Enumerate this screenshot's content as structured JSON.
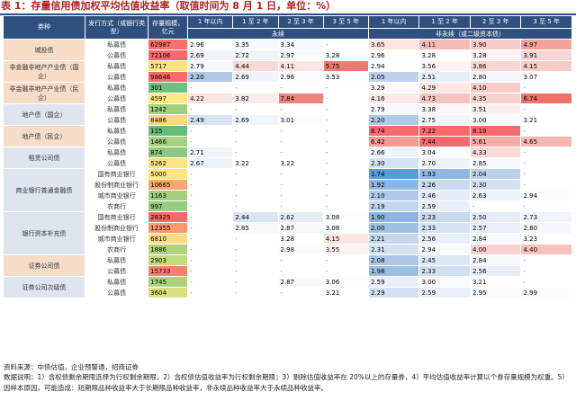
{
  "title": "表 1：存量信用债加权平均估值收益率（取值时间为 8 月 1 日，单位：%）",
  "header": {
    "bond_type": "券种",
    "issue_method": "发行方式（或银行类型）",
    "outstanding": "存量规模，亿元",
    "perpetual_group": "永续",
    "non_perpetual_group": "非永续（或二级资本债）",
    "terms": [
      "1 年以内",
      "1 至 2 年",
      "2 至 3 年",
      "3 至 5 年"
    ]
  },
  "colors": {
    "header_bg": "#2f4f7f",
    "title_red": "#b22222",
    "bond_type_bg": "#f7dcc8",
    "bond_type_alt_bg": "#dfe5ef"
  },
  "groups": [
    {
      "name": "城投债",
      "rows": [
        {
          "method": "私募债",
          "size": "62987",
          "size_color": "#f8716b",
          "values": [
            "2.96",
            "3.35",
            "3.34",
            "-",
            "3.65",
            "4.11",
            "3.90",
            "4.97"
          ],
          "colors": [
            "#ffffff",
            "#f5f8fc",
            "#f5f8fc",
            "#ffffff",
            "#fbe4e2",
            "#f5bcb7",
            "#f8ccc8",
            "#f2a39c"
          ]
        },
        {
          "method": "公募债",
          "size": "72106",
          "size_color": "#f8696b",
          "values": [
            "2.69",
            "2.72",
            "2.97",
            "3.28",
            "2.96",
            "3.28",
            "3.28",
            "3.91"
          ],
          "colors": [
            "#f0f4fa",
            "#f0f4fa",
            "#fafbfd",
            "#fdfeff",
            "#ffffff",
            "#ffffff",
            "#fdf5f4",
            "#f9d6d3"
          ]
        }
      ]
    },
    {
      "name": "非金融非地产产业债（国企）",
      "rows": [
        {
          "method": "私募债",
          "size": "5717",
          "size_color": "#fde282",
          "values": [
            "2.79",
            "4.44",
            "4.11",
            "5.75",
            "2.94",
            "3.56",
            "3.86",
            "4.15"
          ],
          "colors": [
            "#f5f8fc",
            "#f9d9d6",
            "#fbe4e2",
            "#f07a72",
            "#ffffff",
            "#fdf3f2",
            "#f9d6d3",
            "#f8cbc7"
          ]
        },
        {
          "method": "公募债",
          "size": "98646",
          "size_color": "#f8696b",
          "values": [
            "2.20",
            "2.69",
            "2.96",
            "3.53",
            "2.05",
            "2.51",
            "2.80",
            "3.07"
          ],
          "colors": [
            "#aec8e6",
            "#f0f4fa",
            "#fafbfd",
            "#fdfeff",
            "#bcd2ec",
            "#e6eef8",
            "#f4f7fc",
            "#ffffff"
          ]
        }
      ]
    },
    {
      "name": "非金融非地产产业债（民企）",
      "rows": [
        {
          "method": "私募债",
          "size": "301",
          "size_color": "#6cc080",
          "values": [
            "-",
            "-",
            "-",
            "-",
            "3.29",
            "4.29",
            "4.10",
            "-"
          ],
          "colors": [
            "#ffffff",
            "#ffffff",
            "#ffffff",
            "#ffffff",
            "#fefafa",
            "#fce7e5",
            "#f8cdc9",
            "#ffffff"
          ]
        },
        {
          "method": "公募债",
          "size": "4597",
          "size_color": "#ffeb84",
          "values": [
            "4.22",
            "3.82",
            "7.84",
            "-",
            "4.16",
            "4.73",
            "4.35",
            "6.74"
          ],
          "colors": [
            "#fbe4e2",
            "#fcebea",
            "#f2837c",
            "#ffffff",
            "#fce8e6",
            "#f6c4bf",
            "#f9d3cf",
            "#ef726a"
          ]
        }
      ]
    },
    {
      "name": "地产债（国企）",
      "rows": [
        {
          "method": "私募债",
          "size": "1242",
          "size_color": "#a2cf7e",
          "values": [
            "-",
            "-",
            "-",
            "-",
            "2.79",
            "3.38",
            "3.51",
            "-"
          ],
          "colors": [
            "#ffffff",
            "#ffffff",
            "#ffffff",
            "#ffffff",
            "#f5f8fc",
            "#fdf6f5",
            "#fcf0ef",
            "#ffffff"
          ]
        },
        {
          "method": "公募债",
          "size": "8486",
          "size_color": "#fcd87f",
          "values": [
            "2.49",
            "2.69",
            "3.01",
            "-",
            "2.20",
            "2.75",
            "3.00",
            "3.21"
          ],
          "colors": [
            "#d7e3f2",
            "#f0f4fa",
            "#fafbfd",
            "#ffffff",
            "#aec8e6",
            "#f2f6fb",
            "#fafbfd",
            "#ffffff"
          ]
        }
      ]
    },
    {
      "name": "地产债（民企）",
      "rows": [
        {
          "method": "私募债",
          "size": "115",
          "size_color": "#63be7b",
          "values": [
            "-",
            "-",
            "-",
            "-",
            "8.74",
            "7.22",
            "8.19",
            "-"
          ],
          "colors": [
            "#ffffff",
            "#ffffff",
            "#ffffff",
            "#ffffff",
            "#f8696b",
            "#f8696b",
            "#f8696b",
            "#ffffff"
          ]
        },
        {
          "method": "公募债",
          "size": "1466",
          "size_color": "#a8d17f",
          "values": [
            "-",
            "-",
            "-",
            "-",
            "6.42",
            "7.44",
            "5.61",
            "4.65"
          ],
          "colors": [
            "#ffffff",
            "#ffffff",
            "#ffffff",
            "#ffffff",
            "#f29a93",
            "#f8696b",
            "#f5aca6",
            "#f6b7b2"
          ]
        }
      ]
    },
    {
      "name": "租赁公司债",
      "rows": [
        {
          "method": "私募债",
          "size": "874",
          "size_color": "#8ec97f",
          "values": [
            "2.71",
            "-",
            "-",
            "-",
            "2.66",
            "3.04",
            "4.33",
            "-"
          ],
          "colors": [
            "#f1f5fa",
            "#ffffff",
            "#ffffff",
            "#ffffff",
            "#eff4fa",
            "#fcfdfe",
            "#fad9d6",
            "#ffffff"
          ]
        },
        {
          "method": "公募债",
          "size": "5262",
          "size_color": "#fee182",
          "values": [
            "2.67",
            "3.22",
            "3.22",
            "-",
            "2.30",
            "2.70",
            "2.85",
            "-"
          ],
          "colors": [
            "#eef3f9",
            "#ffffff",
            "#ffffff",
            "#ffffff",
            "#d3e1f1",
            "#f0f4fa",
            "#f7f9fc",
            "#ffffff"
          ]
        }
      ]
    },
    {
      "name": "商业银行普通金融债",
      "rows": [
        {
          "method": "国有商业银行",
          "size": "5000",
          "size_color": "#fee482",
          "values": [
            "-",
            "-",
            "-",
            "-",
            "1.74",
            "1.93",
            "2.04",
            "-"
          ],
          "colors": [
            "#ffffff",
            "#ffffff",
            "#ffffff",
            "#ffffff",
            "#5b9bd5",
            "#8fb7e1",
            "#b8d0ea",
            "#ffffff"
          ]
        },
        {
          "method": "股份制商业银行",
          "size": "10665",
          "size_color": "#f9a777",
          "values": [
            "-",
            "-",
            "-",
            "-",
            "1.92",
            "2.26",
            "2.30",
            "-"
          ],
          "colors": [
            "#ffffff",
            "#ffffff",
            "#ffffff",
            "#ffffff",
            "#8db6e0",
            "#c9dbef",
            "#d3e1f1",
            "#ffffff"
          ]
        },
        {
          "method": "城市商业银行",
          "size": "1163",
          "size_color": "#a3cf7e",
          "values": [
            "-",
            "-",
            "-",
            "-",
            "2.10",
            "2.46",
            "2.63",
            "2.94"
          ],
          "colors": [
            "#ffffff",
            "#ffffff",
            "#ffffff",
            "#ffffff",
            "#b0cae7",
            "#e2ebf6",
            "#ecf2f9",
            "#fafbfd"
          ]
        },
        {
          "method": "农商行",
          "size": "997",
          "size_color": "#98cc7f",
          "values": [
            "-",
            "-",
            "-",
            "-",
            "2.19",
            "2.59",
            "-",
            "-"
          ],
          "colors": [
            "#ffffff",
            "#ffffff",
            "#ffffff",
            "#ffffff",
            "#c2d6ed",
            "#e8eff8",
            "#ffffff",
            "#ffffff"
          ]
        }
      ]
    },
    {
      "name": "银行资本补充债",
      "rows": [
        {
          "method": "国有商业银行",
          "size": "28325",
          "size_color": "#f8696b",
          "values": [
            "-",
            "2.44",
            "2.62",
            "3.08",
            "1.90",
            "2.23",
            "2.50",
            "2.73"
          ],
          "colors": [
            "#ffffff",
            "#d9e5f3",
            "#e5edf7",
            "#fcfdfe",
            "#8ab4df",
            "#c6d9ee",
            "#e4ecf7",
            "#f0f4fa"
          ]
        },
        {
          "method": "股份制商业银行",
          "size": "12355",
          "size_color": "#f9976f",
          "values": [
            "-",
            "2.85",
            "2.87",
            "3.08",
            "2.00",
            "2.33",
            "2.57",
            "2.80"
          ],
          "colors": [
            "#ffffff",
            "#f6f9fc",
            "#f6f9fc",
            "#fcfdfe",
            "#a1c1e4",
            "#d5e3f2",
            "#e8eff8",
            "#f4f7fc"
          ]
        },
        {
          "method": "城市商业银行",
          "size": "6810",
          "size_color": "#fddd81",
          "values": [
            "-",
            "-",
            "3.28",
            "4.15",
            "2.21",
            "2.56",
            "2.84",
            "3.23"
          ],
          "colors": [
            "#ffffff",
            "#ffffff",
            "#fefefe",
            "#fbe4e2",
            "#c3d7ed",
            "#e6eef8",
            "#f6f9fc",
            "#ffffff"
          ]
        },
        {
          "method": "农商行",
          "size": "1886",
          "size_color": "#b0d37f",
          "values": [
            "-",
            "-",
            "2.98",
            "3.55",
            "2.31",
            "2.94",
            "4.00",
            "4.40"
          ],
          "colors": [
            "#ffffff",
            "#ffffff",
            "#fafbfd",
            "#fdf3f2",
            "#d4e2f2",
            "#fafbfd",
            "#f8d1ce",
            "#f7c1bc"
          ]
        }
      ]
    },
    {
      "name": "证券公司债",
      "rows": [
        {
          "method": "私募债",
          "size": "2903",
          "size_color": "#c5da80",
          "values": [
            "-",
            "-",
            "-",
            "-",
            "2.08",
            "2.45",
            "2.84",
            "-"
          ],
          "colors": [
            "#ffffff",
            "#ffffff",
            "#ffffff",
            "#ffffff",
            "#acc6e6",
            "#dde8f5",
            "#f6f9fc",
            "#ffffff"
          ]
        },
        {
          "method": "公募债",
          "size": "15733",
          "size_color": "#f8816e",
          "values": [
            "-",
            "-",
            "-",
            "-",
            "1.98",
            "2.33",
            "2.56",
            "-"
          ],
          "colors": [
            "#ffffff",
            "#ffffff",
            "#ffffff",
            "#ffffff",
            "#9abde2",
            "#d0dff1",
            "#e7eef8",
            "#ffffff"
          ]
        }
      ]
    },
    {
      "name": "证券公司次级债",
      "rows": [
        {
          "method": "私募债",
          "size": "1745",
          "size_color": "#acd27f",
          "values": [
            "-",
            "-",
            "2.87",
            "3.06",
            "2.59",
            "3.00",
            "3.21",
            "-"
          ],
          "colors": [
            "#ffffff",
            "#ffffff",
            "#f7f9fc",
            "#fcfdfe",
            "#e8eff8",
            "#fafbfd",
            "#ffffff",
            "#ffffff"
          ]
        },
        {
          "method": "公募债",
          "size": "3604",
          "size_color": "#d9df81",
          "values": [
            "-",
            "-",
            "-",
            "3.21",
            "2.29",
            "2.59",
            "2.95",
            "2.99"
          ],
          "colors": [
            "#ffffff",
            "#ffffff",
            "#ffffff",
            "#ffffff",
            "#d2e0f1",
            "#e8eff8",
            "#f9fafd",
            "#fafbfd"
          ]
        }
      ]
    }
  ],
  "source": "资料来源：中债估值，企业预警通，招商证券",
  "notes": "数据说明：1）含权债剩余期限选择为行权剩余期限，2）含权债估值收益率为行权剩余期限；3）剔除估值收益率在 20%以上的存量券，4）平均估值收益率计算以个券存量规模为权重。5）因样本原因，可能造成：短期限品种收益率大于长期限品种收益率，非永续品种收益率大于永续品种收益率。"
}
